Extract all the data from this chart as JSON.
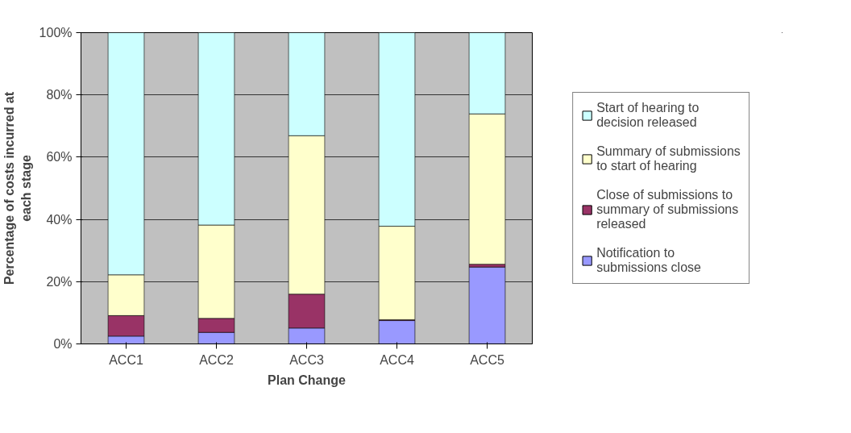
{
  "chart_data": {
    "type": "bar",
    "stacked": true,
    "xlabel": "Plan Change",
    "ylabel": "Percentage of costs incurred at each stage",
    "categories": [
      "ACC1",
      "ACC2",
      "ACC3",
      "ACC4",
      "ACC5"
    ],
    "series": [
      {
        "name": "Notification to submissions close",
        "color": "#9999ff",
        "values": [
          2.5,
          3.7,
          5.1,
          7.5,
          24.7
        ]
      },
      {
        "name": "Close of submissions to summary of submissions released",
        "color": "#993366",
        "values": [
          6.6,
          4.5,
          10.9,
          0.3,
          0.9
        ]
      },
      {
        "name": "Summary of submissions to start of hearing",
        "color": "#ffffcc",
        "values": [
          13.1,
          30.0,
          50.9,
          30.0,
          48.3
        ]
      },
      {
        "name": "Start of hearing to decision released",
        "color": "#ccffff",
        "values": [
          77.8,
          61.8,
          33.1,
          62.2,
          26.1
        ]
      }
    ],
    "ylim": [
      0,
      100
    ],
    "yticks": [
      {
        "value": 0,
        "label": "0%"
      },
      {
        "value": 20,
        "label": "20%"
      },
      {
        "value": 40,
        "label": "40%"
      },
      {
        "value": 60,
        "label": "60%"
      },
      {
        "value": 80,
        "label": "80%"
      },
      {
        "value": 100,
        "label": "100%"
      }
    ],
    "grid": "y",
    "legend": "right"
  }
}
